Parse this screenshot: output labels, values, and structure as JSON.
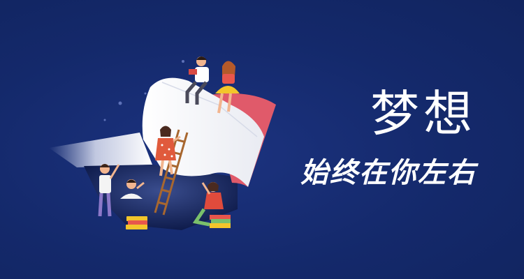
{
  "banner": {
    "title": "梦想",
    "subtitle": "始终在你左右"
  },
  "colors": {
    "background": "#14296b",
    "book_page": "#f4f4f6",
    "book_cover_edge": "#e05a6a",
    "text": "#ffffff"
  },
  "illustration": {
    "icon": "open-book-with-readers-illustration"
  }
}
